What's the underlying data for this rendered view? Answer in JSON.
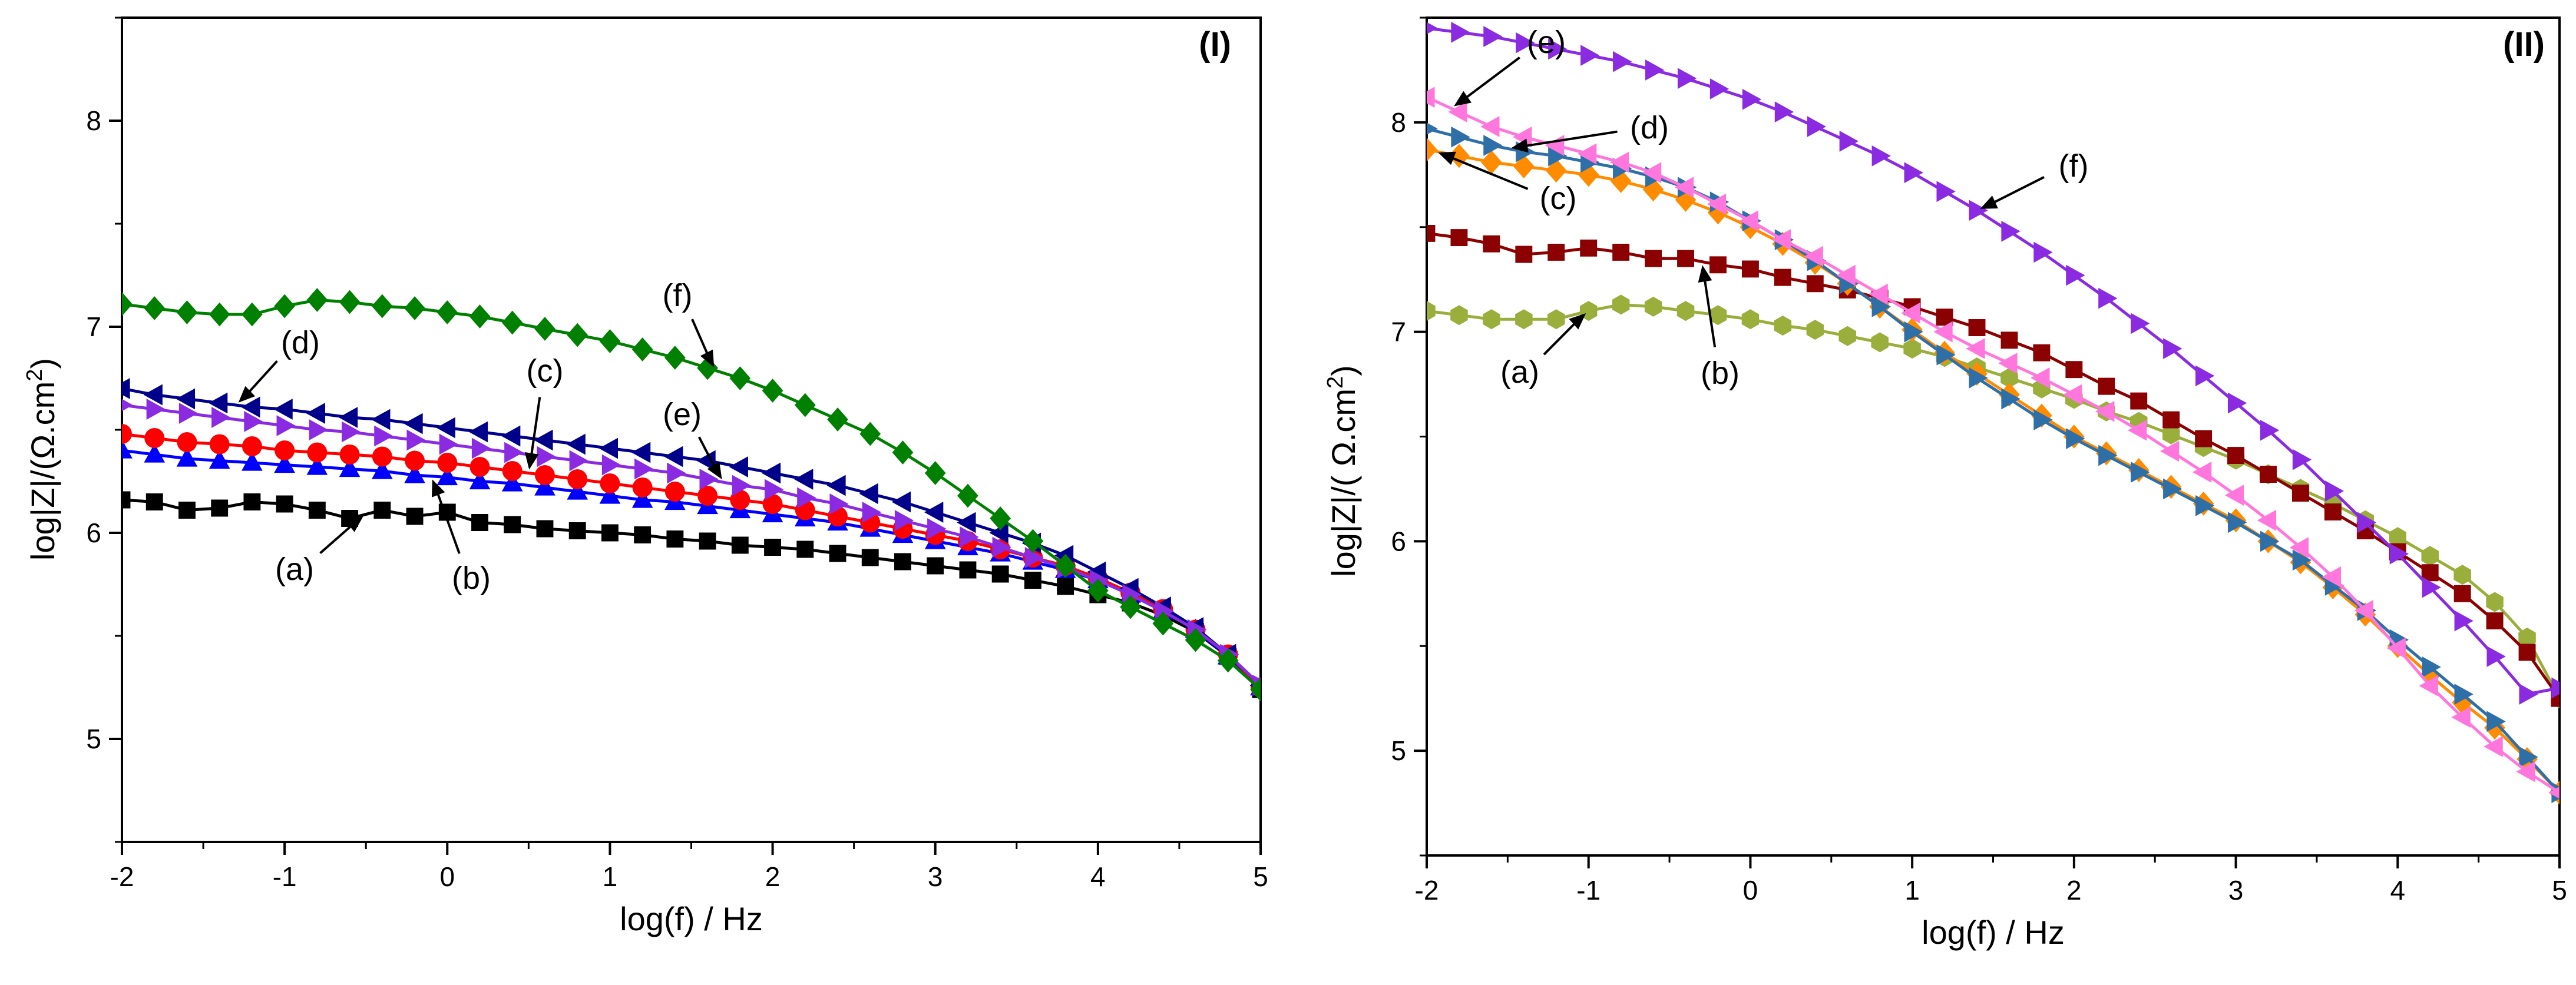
{
  "chart_data": [
    {
      "type": "line",
      "panel_label": "(I)",
      "xlabel": "log(f) / Hz",
      "ylabel_parts": [
        "log",
        "|",
        "Z",
        "|",
        "/(Ω.cm",
        "2",
        ")"
      ],
      "xlim": [
        -2,
        5
      ],
      "ylim": [
        4.5,
        8.5
      ],
      "xticks": [
        "-2",
        "-1",
        "0",
        "1",
        "2",
        "3",
        "4",
        "5"
      ],
      "yticks": [
        "5",
        "6",
        "7",
        "8"
      ],
      "series": [
        {
          "name": "(a)",
          "marker": "square",
          "color": "#000000",
          "x": [
            -2,
            -1.8,
            -1.6,
            -1.4,
            -1.2,
            -1,
            -0.8,
            -0.6,
            -0.4,
            -0.2,
            0,
            0.2,
            0.4,
            0.6,
            0.8,
            1,
            1.2,
            1.4,
            1.6,
            1.8,
            2,
            2.2,
            2.4,
            2.6,
            2.8,
            3,
            3.2,
            3.4,
            3.6,
            3.8,
            4,
            4.2,
            4.4,
            4.6,
            4.8,
            5
          ],
          "y": [
            6.16,
            6.15,
            6.11,
            6.12,
            6.15,
            6.14,
            6.11,
            6.07,
            6.11,
            6.08,
            6.1,
            6.05,
            6.04,
            6.02,
            6.01,
            6.0,
            5.99,
            5.97,
            5.96,
            5.94,
            5.93,
            5.92,
            5.9,
            5.88,
            5.86,
            5.84,
            5.82,
            5.8,
            5.77,
            5.74,
            5.7,
            5.66,
            5.6,
            5.52,
            5.4,
            5.24
          ]
        },
        {
          "name": "(b)",
          "marker": "triangle-up",
          "color": "#0000ff",
          "x": [
            -2,
            -1.8,
            -1.6,
            -1.4,
            -1.2,
            -1,
            -0.8,
            -0.6,
            -0.4,
            -0.2,
            0,
            0.2,
            0.4,
            0.6,
            0.8,
            1,
            1.2,
            1.4,
            1.6,
            1.8,
            2,
            2.2,
            2.4,
            2.6,
            2.8,
            3,
            3.2,
            3.4,
            3.6,
            3.8,
            4,
            4.2,
            4.4,
            4.6,
            4.8,
            5
          ],
          "y": [
            6.4,
            6.38,
            6.36,
            6.35,
            6.34,
            6.33,
            6.32,
            6.31,
            6.3,
            6.28,
            6.27,
            6.25,
            6.24,
            6.22,
            6.2,
            6.18,
            6.16,
            6.15,
            6.13,
            6.11,
            6.09,
            6.07,
            6.05,
            6.02,
            5.99,
            5.96,
            5.93,
            5.9,
            5.86,
            5.82,
            5.77,
            5.7,
            5.62,
            5.53,
            5.4,
            5.25
          ]
        },
        {
          "name": "(c)",
          "marker": "circle",
          "color": "#ff0000",
          "x": [
            -2,
            -1.8,
            -1.6,
            -1.4,
            -1.2,
            -1,
            -0.8,
            -0.6,
            -0.4,
            -0.2,
            0,
            0.2,
            0.4,
            0.6,
            0.8,
            1,
            1.2,
            1.4,
            1.6,
            1.8,
            2,
            2.2,
            2.4,
            2.6,
            2.8,
            3,
            3.2,
            3.4,
            3.6,
            3.8,
            4,
            4.2,
            4.4,
            4.6,
            4.8,
            5
          ],
          "y": [
            6.48,
            6.46,
            6.44,
            6.43,
            6.42,
            6.4,
            6.39,
            6.38,
            6.37,
            6.35,
            6.34,
            6.32,
            6.3,
            6.28,
            6.26,
            6.24,
            6.22,
            6.2,
            6.18,
            6.16,
            6.14,
            6.11,
            6.08,
            6.05,
            6.02,
            5.99,
            5.96,
            5.92,
            5.88,
            5.84,
            5.78,
            5.71,
            5.63,
            5.53,
            5.41,
            5.25
          ]
        },
        {
          "name": "(d)",
          "marker": "triangle-left",
          "color": "#00008b",
          "x": [
            -2,
            -1.8,
            -1.6,
            -1.4,
            -1.2,
            -1,
            -0.8,
            -0.6,
            -0.4,
            -0.2,
            0,
            0.2,
            0.4,
            0.6,
            0.8,
            1,
            1.2,
            1.4,
            1.6,
            1.8,
            2,
            2.2,
            2.4,
            2.6,
            2.8,
            3,
            3.2,
            3.4,
            3.6,
            3.8,
            4,
            4.2,
            4.4,
            4.6,
            4.8,
            5
          ],
          "y": [
            6.7,
            6.67,
            6.65,
            6.63,
            6.61,
            6.6,
            6.58,
            6.56,
            6.55,
            6.53,
            6.51,
            6.49,
            6.47,
            6.45,
            6.43,
            6.41,
            6.39,
            6.37,
            6.35,
            6.32,
            6.29,
            6.26,
            6.23,
            6.19,
            6.15,
            6.1,
            6.05,
            6.0,
            5.95,
            5.89,
            5.81,
            5.73,
            5.64,
            5.54,
            5.41,
            5.26
          ]
        },
        {
          "name": "(e)",
          "marker": "triangle-right",
          "color": "#8a2be2",
          "x": [
            -2,
            -1.8,
            -1.6,
            -1.4,
            -1.2,
            -1,
            -0.8,
            -0.6,
            -0.4,
            -0.2,
            0,
            0.2,
            0.4,
            0.6,
            0.8,
            1,
            1.2,
            1.4,
            1.6,
            1.8,
            2,
            2.2,
            2.4,
            2.6,
            2.8,
            3,
            3.2,
            3.4,
            3.6,
            3.8,
            4,
            4.2,
            4.4,
            4.6,
            4.8,
            5
          ],
          "y": [
            6.62,
            6.6,
            6.58,
            6.56,
            6.54,
            6.52,
            6.5,
            6.49,
            6.47,
            6.45,
            6.43,
            6.41,
            6.39,
            6.37,
            6.35,
            6.33,
            6.31,
            6.29,
            6.26,
            6.23,
            6.21,
            6.17,
            6.14,
            6.1,
            6.06,
            6.02,
            5.98,
            5.93,
            5.88,
            5.83,
            5.77,
            5.7,
            5.62,
            5.53,
            5.41,
            5.26
          ]
        },
        {
          "name": "(f)",
          "marker": "diamond",
          "color": "#008000",
          "x": [
            -2,
            -1.8,
            -1.6,
            -1.4,
            -1.2,
            -1,
            -0.8,
            -0.6,
            -0.4,
            -0.2,
            0,
            0.2,
            0.4,
            0.6,
            0.8,
            1,
            1.2,
            1.4,
            1.6,
            1.8,
            2,
            2.2,
            2.4,
            2.6,
            2.8,
            3,
            3.2,
            3.4,
            3.6,
            3.8,
            4,
            4.2,
            4.4,
            4.6,
            4.8,
            5
          ],
          "y": [
            7.11,
            7.09,
            7.07,
            7.06,
            7.06,
            7.1,
            7.13,
            7.12,
            7.1,
            7.09,
            7.07,
            7.05,
            7.02,
            6.99,
            6.96,
            6.93,
            6.89,
            6.85,
            6.8,
            6.75,
            6.69,
            6.62,
            6.55,
            6.48,
            6.39,
            6.29,
            6.18,
            6.07,
            5.96,
            5.84,
            5.72,
            5.64,
            5.56,
            5.48,
            5.38,
            5.24
          ]
        }
      ],
      "annotations": [
        {
          "text": "(a)",
          "target_series": "(a)",
          "target_x": -0.5
        },
        {
          "text": "(b)",
          "target_series": "(b)",
          "target_x": -0.1
        },
        {
          "text": "(c)",
          "target_series": "(c)",
          "target_x": 0.5
        },
        {
          "text": "(d)",
          "target_series": "(d)",
          "target_x": -1.3
        },
        {
          "text": "(e)",
          "target_series": "(e)",
          "target_x": 1.7
        },
        {
          "text": "(f)",
          "target_series": "(f)",
          "target_x": 1.65
        }
      ]
    },
    {
      "type": "line",
      "panel_label": "(II)",
      "xlabel": "log(f) / Hz",
      "ylabel_parts": [
        "log",
        "|",
        "Z",
        "|",
        "/( Ω.cm",
        "2",
        ")"
      ],
      "xlim": [
        -2,
        5
      ],
      "ylim": [
        4.5,
        8.5
      ],
      "xticks": [
        "-2",
        "-1",
        "0",
        "1",
        "2",
        "3",
        "4",
        "5"
      ],
      "yticks": [
        "5",
        "6",
        "7",
        "8"
      ],
      "series": [
        {
          "name": "(a)",
          "marker": "hexagon",
          "color": "#9aae3b",
          "x": [
            -2,
            -1.8,
            -1.6,
            -1.4,
            -1.2,
            -1,
            -0.8,
            -0.6,
            -0.4,
            -0.2,
            0,
            0.2,
            0.4,
            0.6,
            0.8,
            1,
            1.2,
            1.4,
            1.6,
            1.8,
            2,
            2.2,
            2.4,
            2.6,
            2.8,
            3,
            3.2,
            3.4,
            3.6,
            3.8,
            4,
            4.2,
            4.4,
            4.6,
            4.8,
            5
          ],
          "y": [
            7.1,
            7.08,
            7.06,
            7.06,
            7.06,
            7.1,
            7.13,
            7.12,
            7.1,
            7.08,
            7.06,
            7.03,
            7.01,
            6.98,
            6.95,
            6.92,
            6.88,
            6.83,
            6.78,
            6.73,
            6.68,
            6.62,
            6.57,
            6.51,
            6.45,
            6.39,
            6.32,
            6.25,
            6.18,
            6.1,
            6.02,
            5.93,
            5.84,
            5.71,
            5.54,
            5.25
          ]
        },
        {
          "name": "(b)",
          "marker": "square",
          "color": "#8b0000",
          "x": [
            -2,
            -1.8,
            -1.6,
            -1.4,
            -1.2,
            -1,
            -0.8,
            -0.6,
            -0.4,
            -0.2,
            0,
            0.2,
            0.4,
            0.6,
            0.8,
            1,
            1.2,
            1.4,
            1.6,
            1.8,
            2,
            2.2,
            2.4,
            2.6,
            2.8,
            3,
            3.2,
            3.4,
            3.6,
            3.8,
            4,
            4.2,
            4.4,
            4.6,
            4.8,
            5
          ],
          "y": [
            7.47,
            7.45,
            7.42,
            7.37,
            7.38,
            7.4,
            7.38,
            7.35,
            7.35,
            7.32,
            7.3,
            7.26,
            7.23,
            7.2,
            7.16,
            7.12,
            7.07,
            7.02,
            6.96,
            6.9,
            6.82,
            6.74,
            6.67,
            6.58,
            6.49,
            6.41,
            6.32,
            6.23,
            6.14,
            6.05,
            5.95,
            5.85,
            5.75,
            5.62,
            5.47,
            5.25
          ]
        },
        {
          "name": "(c)",
          "marker": "diamond",
          "color": "#ff8c00",
          "x": [
            -2,
            -1.8,
            -1.6,
            -1.4,
            -1.2,
            -1,
            -0.8,
            -0.6,
            -0.4,
            -0.2,
            0,
            0.2,
            0.4,
            0.6,
            0.8,
            1,
            1.2,
            1.4,
            1.6,
            1.8,
            2,
            2.2,
            2.4,
            2.6,
            2.8,
            3,
            3.2,
            3.4,
            3.6,
            3.8,
            4,
            4.2,
            4.4,
            4.6,
            4.8,
            5
          ],
          "y": [
            7.87,
            7.84,
            7.81,
            7.79,
            7.77,
            7.75,
            7.72,
            7.68,
            7.63,
            7.57,
            7.5,
            7.42,
            7.33,
            7.23,
            7.12,
            7.01,
            6.9,
            6.8,
            6.7,
            6.6,
            6.5,
            6.42,
            6.34,
            6.26,
            6.18,
            6.1,
            6.0,
            5.9,
            5.78,
            5.65,
            5.5,
            5.36,
            5.23,
            5.11,
            4.96,
            4.8
          ]
        },
        {
          "name": "(d)",
          "marker": "triangle-right",
          "color": "#2e6fa8",
          "x": [
            -2,
            -1.8,
            -1.6,
            -1.4,
            -1.2,
            -1,
            -0.8,
            -0.6,
            -0.4,
            -0.2,
            0,
            0.2,
            0.4,
            0.6,
            0.8,
            1,
            1.2,
            1.4,
            1.6,
            1.8,
            2,
            2.2,
            2.4,
            2.6,
            2.8,
            3,
            3.2,
            3.4,
            3.6,
            3.8,
            4,
            4.2,
            4.4,
            4.6,
            4.8,
            5
          ],
          "y": [
            7.97,
            7.93,
            7.89,
            7.86,
            7.84,
            7.81,
            7.78,
            7.74,
            7.69,
            7.62,
            7.53,
            7.44,
            7.34,
            7.23,
            7.12,
            7.0,
            6.89,
            6.78,
            6.68,
            6.58,
            6.49,
            6.41,
            6.33,
            6.25,
            6.17,
            6.09,
            6.0,
            5.91,
            5.79,
            5.67,
            5.53,
            5.4,
            5.27,
            5.14,
            4.97,
            4.8
          ]
        },
        {
          "name": "(e)",
          "marker": "triangle-left",
          "color": "#ff77dd",
          "x": [
            -2,
            -1.8,
            -1.6,
            -1.4,
            -1.2,
            -1,
            -0.8,
            -0.6,
            -0.4,
            -0.2,
            0,
            0.2,
            0.4,
            0.6,
            0.8,
            1,
            1.2,
            1.4,
            1.6,
            1.8,
            2,
            2.2,
            2.4,
            2.6,
            2.8,
            3,
            3.2,
            3.4,
            3.6,
            3.8,
            4,
            4.2,
            4.4,
            4.6,
            4.8,
            5
          ],
          "y": [
            8.12,
            8.05,
            7.98,
            7.93,
            7.89,
            7.85,
            7.81,
            7.76,
            7.69,
            7.61,
            7.53,
            7.44,
            7.36,
            7.27,
            7.18,
            7.09,
            7.0,
            6.92,
            6.85,
            6.78,
            6.7,
            6.62,
            6.53,
            6.43,
            6.33,
            6.22,
            6.1,
            5.97,
            5.83,
            5.67,
            5.49,
            5.31,
            5.16,
            5.02,
            4.9,
            4.8
          ]
        },
        {
          "name": "(f)",
          "marker": "triangle-right",
          "color": "#8a2be2",
          "x": [
            -2,
            -1.8,
            -1.6,
            -1.4,
            -1.2,
            -1,
            -0.8,
            -0.6,
            -0.4,
            -0.2,
            0,
            0.2,
            0.4,
            0.6,
            0.8,
            1,
            1.2,
            1.4,
            1.6,
            1.8,
            2,
            2.2,
            2.4,
            2.6,
            2.8,
            3,
            3.2,
            3.4,
            3.6,
            3.8,
            4,
            4.2,
            4.4,
            4.6,
            4.8,
            5
          ],
          "y": [
            8.45,
            8.43,
            8.41,
            8.38,
            8.35,
            8.32,
            8.29,
            8.25,
            8.21,
            8.16,
            8.11,
            8.05,
            7.98,
            7.91,
            7.84,
            7.76,
            7.67,
            7.58,
            7.48,
            7.38,
            7.27,
            7.16,
            7.04,
            6.92,
            6.79,
            6.66,
            6.53,
            6.39,
            6.24,
            6.09,
            5.94,
            5.78,
            5.62,
            5.45,
            5.27,
            5.3
          ]
        }
      ],
      "annotations": [
        {
          "text": "(a)",
          "target_series": "(a)",
          "target_x": -1.0
        },
        {
          "text": "(b)",
          "target_series": "(b)",
          "target_x": -0.3
        },
        {
          "text": "(c)",
          "target_series": "(c)",
          "target_x": -1.95
        },
        {
          "text": "(d)",
          "target_series": "(d)",
          "target_x": -1.5
        },
        {
          "text": "(e)",
          "target_series": "(e)",
          "target_x": -1.85
        },
        {
          "text": "(f)",
          "target_series": "(f)",
          "target_x": 1.4
        }
      ]
    }
  ]
}
